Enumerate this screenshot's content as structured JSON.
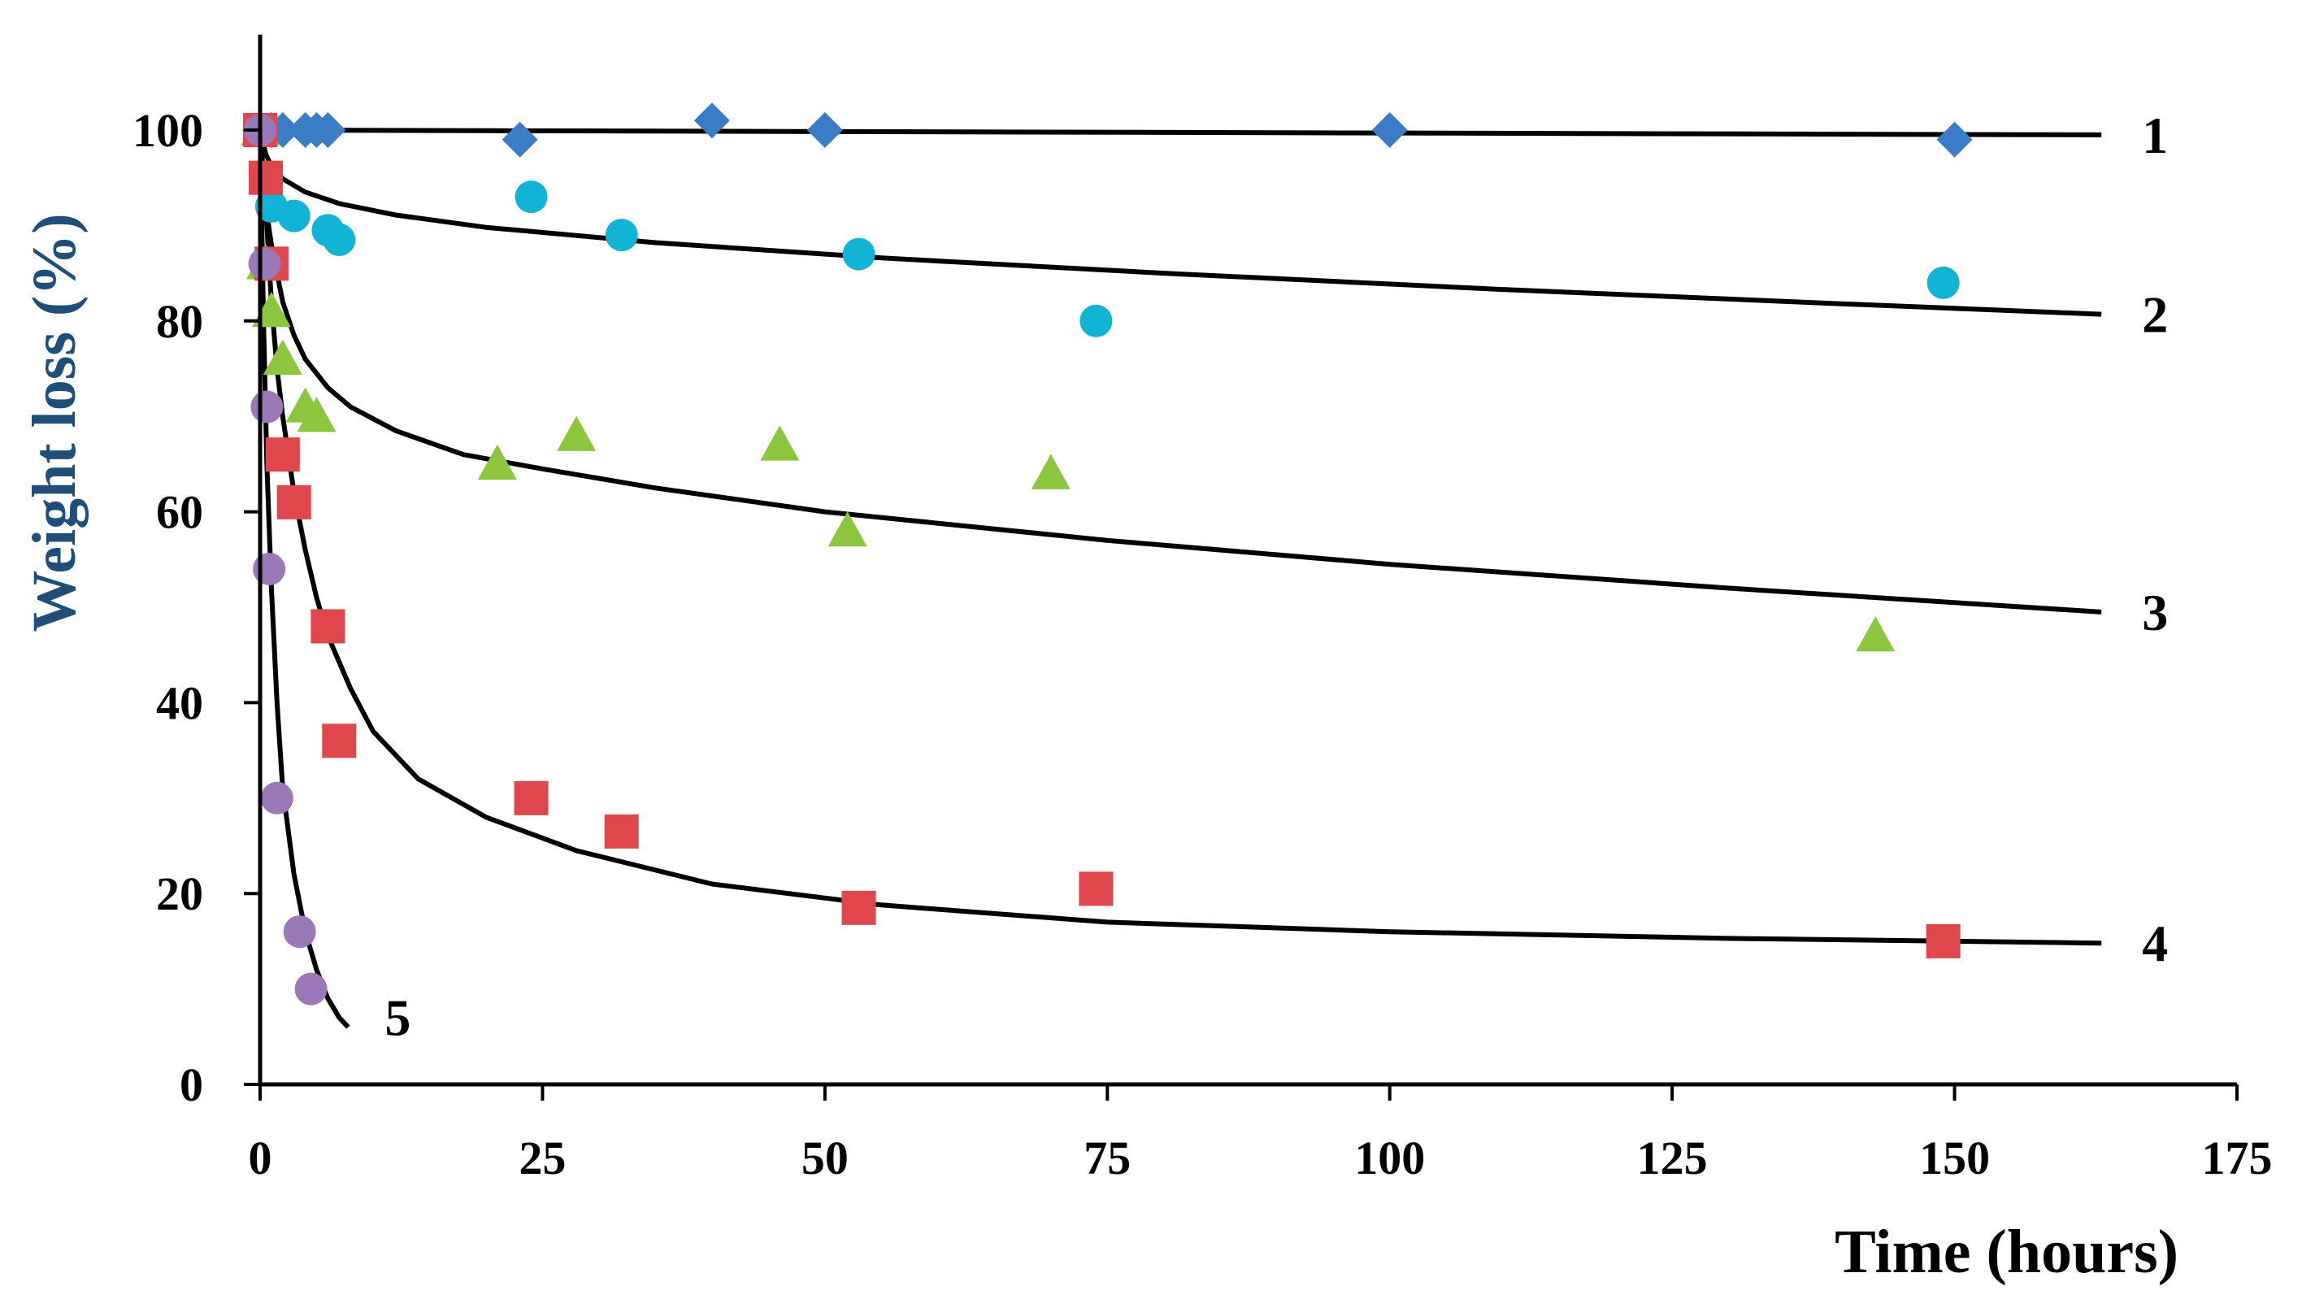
{
  "chart_data": {
    "type": "scatter",
    "title": "",
    "xlabel": "Time (hours)",
    "ylabel": "Weight loss (%)",
    "xlim": [
      0,
      175
    ],
    "ylim": [
      0,
      110
    ],
    "xticks": [
      "0",
      "25",
      "50",
      "75",
      "100",
      "125",
      "150",
      "175"
    ],
    "yticks": [
      "0",
      "20",
      "40",
      "60",
      "80",
      "100"
    ],
    "xtick_values": [
      0,
      25,
      50,
      75,
      100,
      125,
      150,
      175
    ],
    "ytick_values": [
      0,
      20,
      40,
      60,
      80,
      100
    ],
    "grid": false,
    "ylabel_color": "#1f4e79",
    "series": [
      {
        "label": "1",
        "marker": "diamond",
        "color": "#3a7cc6",
        "points": [
          [
            0,
            100
          ],
          [
            1,
            100
          ],
          [
            2,
            100
          ],
          [
            4,
            100
          ],
          [
            5,
            100
          ],
          [
            6,
            100
          ],
          [
            23,
            99
          ],
          [
            40,
            101
          ],
          [
            50,
            100
          ],
          [
            100,
            100
          ],
          [
            150,
            99
          ]
        ],
        "fit": [
          [
            0,
            100
          ],
          [
            163,
            99.5
          ]
        ]
      },
      {
        "label": "2",
        "marker": "circle",
        "color": "#11b4d4",
        "points": [
          [
            0,
            100
          ],
          [
            1,
            92
          ],
          [
            3,
            91
          ],
          [
            6,
            89.5
          ],
          [
            7,
            88.5
          ],
          [
            24,
            93
          ],
          [
            32,
            89
          ],
          [
            53,
            87
          ],
          [
            74,
            80
          ],
          [
            149,
            84
          ]
        ],
        "fit": [
          [
            0,
            100
          ],
          [
            0.5,
            97.5
          ],
          [
            1,
            96.2
          ],
          [
            2,
            94.9
          ],
          [
            4,
            93.5
          ],
          [
            7,
            92.3
          ],
          [
            12,
            91.1
          ],
          [
            20,
            89.8
          ],
          [
            35,
            88.2
          ],
          [
            55,
            86.6
          ],
          [
            80,
            85
          ],
          [
            110,
            83.3
          ],
          [
            140,
            81.8
          ],
          [
            163,
            80.7
          ]
        ]
      },
      {
        "label": "3",
        "marker": "triangle",
        "color": "#8cc63f",
        "points": [
          [
            0,
            100
          ],
          [
            0.5,
            86
          ],
          [
            1,
            81
          ],
          [
            2,
            76
          ],
          [
            4,
            71
          ],
          [
            5,
            70
          ],
          [
            21,
            65
          ],
          [
            28,
            68
          ],
          [
            46,
            67
          ],
          [
            52,
            58
          ],
          [
            70,
            64
          ],
          [
            143,
            47
          ]
        ],
        "fit": [
          [
            0,
            100
          ],
          [
            0.5,
            92
          ],
          [
            1,
            88
          ],
          [
            1.5,
            85
          ],
          [
            2,
            82
          ],
          [
            3,
            78.5
          ],
          [
            4,
            76
          ],
          [
            6,
            73
          ],
          [
            8,
            71
          ],
          [
            12,
            68.5
          ],
          [
            18,
            66
          ],
          [
            25,
            64.5
          ],
          [
            35,
            62.5
          ],
          [
            50,
            60
          ],
          [
            75,
            57
          ],
          [
            100,
            54.5
          ],
          [
            130,
            52
          ],
          [
            163,
            49.5
          ]
        ]
      },
      {
        "label": "4",
        "marker": "square",
        "color": "#e0474c",
        "points": [
          [
            0,
            100
          ],
          [
            0.5,
            95
          ],
          [
            1,
            86
          ],
          [
            2,
            66
          ],
          [
            3,
            61
          ],
          [
            6,
            48
          ],
          [
            7,
            36
          ],
          [
            24,
            30
          ],
          [
            32,
            26.5
          ],
          [
            53,
            18.5
          ],
          [
            74,
            20.5
          ],
          [
            149,
            15
          ]
        ],
        "fit": [
          [
            0,
            100
          ],
          [
            0.5,
            92
          ],
          [
            1,
            82
          ],
          [
            1.5,
            75
          ],
          [
            2,
            70
          ],
          [
            3,
            62
          ],
          [
            4,
            56
          ],
          [
            5,
            51
          ],
          [
            6,
            47
          ],
          [
            8,
            41.5
          ],
          [
            10,
            37
          ],
          [
            14,
            32
          ],
          [
            20,
            28
          ],
          [
            28,
            24.5
          ],
          [
            40,
            21
          ],
          [
            55,
            18.8
          ],
          [
            75,
            17
          ],
          [
            100,
            16
          ],
          [
            130,
            15.3
          ],
          [
            163,
            14.8
          ]
        ]
      },
      {
        "label": "5",
        "marker": "circle",
        "color": "#9b78b8",
        "points": [
          [
            0,
            100
          ],
          [
            0.4,
            86
          ],
          [
            0.6,
            71
          ],
          [
            0.8,
            54
          ],
          [
            1.5,
            30
          ],
          [
            3.5,
            16
          ],
          [
            4.5,
            10
          ]
        ],
        "fit": [
          [
            0,
            100
          ],
          [
            0.3,
            80
          ],
          [
            0.6,
            65
          ],
          [
            1,
            52
          ],
          [
            1.5,
            40
          ],
          [
            2,
            31
          ],
          [
            3,
            22
          ],
          [
            4,
            16
          ],
          [
            5,
            12
          ],
          [
            6,
            9
          ],
          [
            7,
            7
          ],
          [
            7.8,
            6
          ]
        ]
      }
    ]
  }
}
